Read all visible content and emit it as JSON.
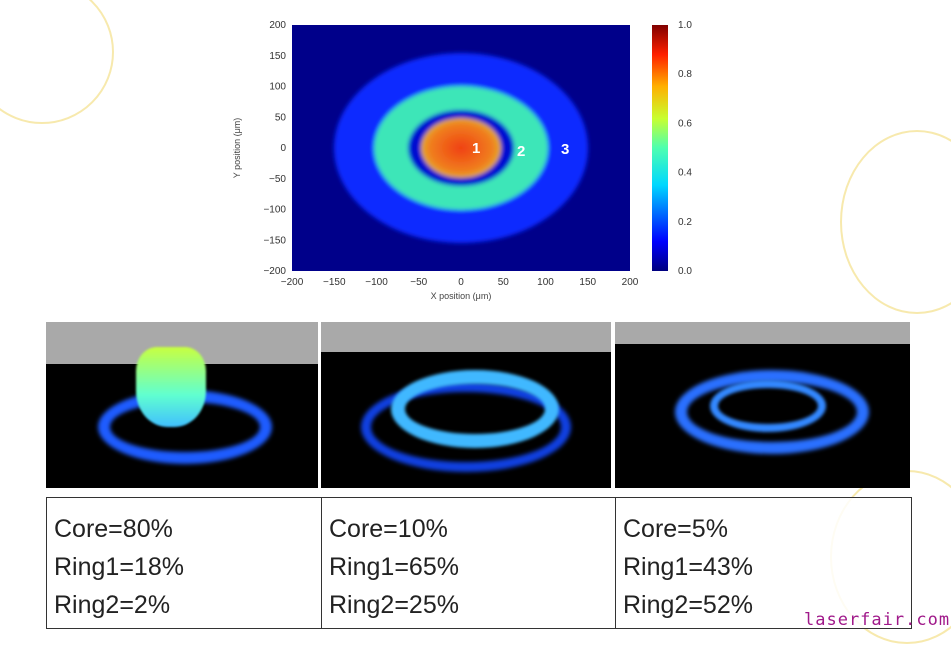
{
  "chart_data": {
    "type": "heatmap",
    "title": "",
    "xlabel": "X position (μm)",
    "ylabel": "Y position (μm)",
    "xlim": [
      -200,
      200
    ],
    "ylim": [
      -200,
      200
    ],
    "xticks": [
      "−200",
      "−150",
      "−100",
      "−50",
      "0",
      "50",
      "100",
      "150",
      "200"
    ],
    "yticks": [
      "200",
      "150",
      "100",
      "50",
      "0",
      "−50",
      "−100",
      "−150",
      "−200"
    ],
    "colorbar": {
      "range": [
        0,
        1
      ],
      "ticks": [
        "1.0",
        "0.8",
        "0.6",
        "0.4",
        "0.2",
        "0.0"
      ],
      "colormap": "jet"
    },
    "regions": [
      {
        "label": "1",
        "name": "core",
        "outer_radius_um": 45,
        "intensity": 0.8
      },
      {
        "label": "2",
        "name": "ring1",
        "inner_radius_um": 65,
        "outer_radius_um": 100,
        "intensity": 0.42
      },
      {
        "label": "3",
        "name": "ring2",
        "inner_radius_um": 100,
        "outer_radius_um": 150,
        "intensity": 0.15
      }
    ]
  },
  "cases": [
    {
      "core": "Core=80%",
      "ring1": "Ring1=18%",
      "ring2": "Ring2=2%"
    },
    {
      "core": "Core=10%",
      "ring1": "Ring1=65%",
      "ring2": "Ring2=25%"
    },
    {
      "core": "Core=5%",
      "ring1": "Ring1=43%",
      "ring2": "Ring2=52%"
    }
  ],
  "watermark": "laserfair.com"
}
